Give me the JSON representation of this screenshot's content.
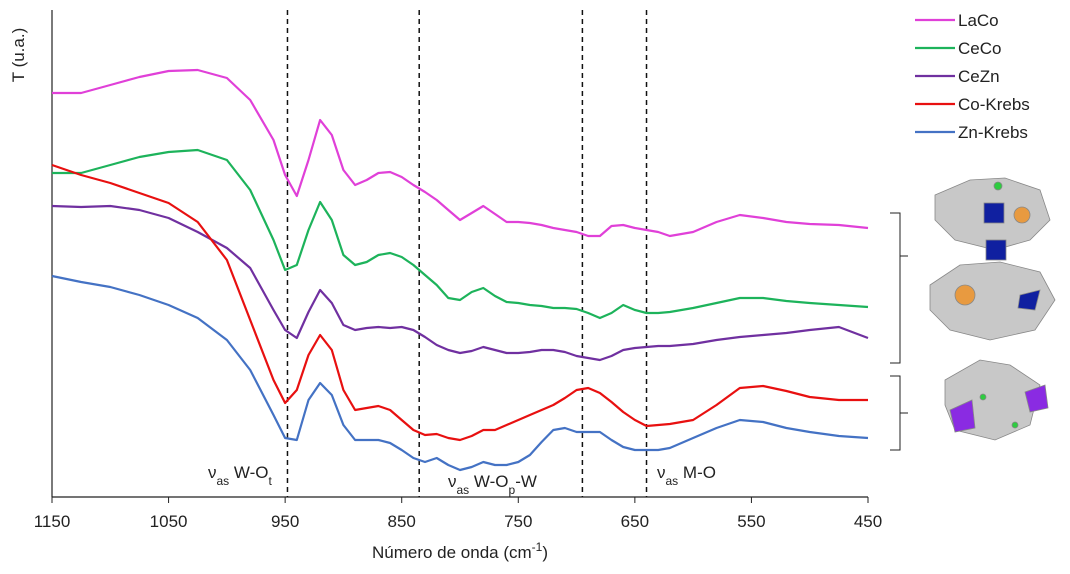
{
  "chart_data": {
    "type": "line",
    "y_label": "T (u.a.)",
    "x_label": [
      {
        "text": "Número de onda (cm"
      },
      {
        "text": "-1",
        "sup": true
      },
      {
        "text": ")"
      }
    ],
    "x": [
      1150,
      1125,
      1100,
      1075,
      1050,
      1025,
      1000,
      980,
      960,
      950,
      940,
      930,
      920,
      910,
      900,
      890,
      880,
      870,
      860,
      850,
      840,
      830,
      820,
      810,
      800,
      790,
      780,
      770,
      760,
      750,
      740,
      730,
      720,
      710,
      700,
      690,
      680,
      670,
      660,
      650,
      640,
      630,
      620,
      600,
      580,
      560,
      540,
      520,
      500,
      475,
      450
    ],
    "series": [
      {
        "name": "LaCo",
        "color": "#e040d8",
        "values": [
          407,
          407,
          415,
          423,
          429,
          430,
          422,
          400,
          360,
          325,
          304,
          340,
          380,
          365,
          330,
          315,
          320,
          327,
          328,
          323,
          315,
          308,
          300,
          290,
          280,
          287,
          294,
          286,
          278,
          278,
          277,
          275,
          272,
          270,
          268,
          264,
          264,
          274,
          275,
          272,
          270,
          268,
          264,
          268,
          278,
          285,
          282,
          278,
          276,
          275,
          272
        ]
      },
      {
        "name": "CeCo",
        "color": "#1db35b",
        "values": [
          327,
          327,
          335,
          343,
          348,
          350,
          340,
          310,
          260,
          230,
          235,
          270,
          298,
          280,
          245,
          235,
          238,
          245,
          247,
          243,
          235,
          225,
          215,
          202,
          200,
          208,
          212,
          204,
          198,
          197,
          195,
          194,
          192,
          192,
          191,
          187,
          182,
          187,
          195,
          190,
          187,
          187,
          188,
          192,
          197,
          202,
          202,
          199,
          197,
          195,
          193
        ]
      },
      {
        "name": "CeZn",
        "color": "#7030a0",
        "values": [
          294,
          293,
          294,
          290,
          282,
          268,
          252,
          232,
          190,
          170,
          162,
          188,
          210,
          197,
          175,
          170,
          172,
          173,
          172,
          173,
          170,
          163,
          155,
          150,
          147,
          149,
          153,
          150,
          147,
          147,
          148,
          150,
          150,
          148,
          144,
          142,
          140,
          144,
          150,
          152,
          153,
          154,
          154,
          156,
          160,
          163,
          165,
          167,
          170,
          173,
          162
        ]
      },
      {
        "name": "Co-Krebs",
        "color": "#e81010",
        "values": [
          335,
          325,
          317,
          307,
          297,
          278,
          240,
          180,
          120,
          97,
          110,
          145,
          165,
          150,
          110,
          90,
          92,
          94,
          90,
          80,
          70,
          65,
          66,
          62,
          60,
          64,
          70,
          70,
          75,
          80,
          85,
          90,
          95,
          102,
          110,
          112,
          107,
          98,
          88,
          80,
          74,
          75,
          76,
          80,
          95,
          112,
          114,
          109,
          103,
          100,
          100
        ]
      },
      {
        "name": "Zn-Krebs",
        "color": "#4472c4",
        "values": [
          224,
          218,
          213,
          205,
          195,
          182,
          160,
          130,
          85,
          62,
          60,
          100,
          117,
          105,
          75,
          60,
          60,
          60,
          57,
          50,
          42,
          38,
          42,
          35,
          30,
          33,
          38,
          35,
          35,
          38,
          45,
          58,
          70,
          72,
          68,
          68,
          68,
          60,
          53,
          50,
          50,
          50,
          52,
          62,
          72,
          80,
          78,
          72,
          68,
          64,
          62
        ]
      }
    ],
    "xlim": [
      1150,
      450
    ],
    "xticks": [
      1150,
      1050,
      950,
      850,
      750,
      650,
      550,
      450
    ],
    "ylim": [
      3,
      490
    ],
    "vlines": [
      948,
      835,
      695,
      640
    ],
    "annotations": [
      [
        {
          "text": "ν"
        },
        {
          "text": "as",
          "sub": true
        },
        {
          "text": " W-O"
        },
        {
          "text": "t",
          "sub": true
        }
      ],
      [
        {
          "text": "ν"
        },
        {
          "text": "as",
          "sub": true
        },
        {
          "text": " W-O"
        },
        {
          "text": "p",
          "sub": true
        },
        {
          "text": "-W"
        }
      ],
      [
        {
          "text": "ν"
        },
        {
          "text": "as",
          "sub": true
        },
        {
          "text": " M-O"
        }
      ]
    ],
    "legend": "top-right"
  }
}
